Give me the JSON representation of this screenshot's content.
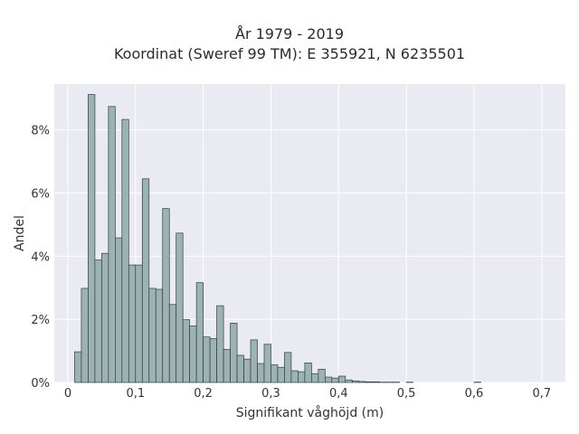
{
  "chart_data": {
    "type": "bar",
    "title_lines": [
      "År 1979 - 2019",
      "Koordinat (Sweref 99 TM): E 355921, N 6235501"
    ],
    "xlabel": "Signifikant våghöjd (m)",
    "ylabel": "Andel",
    "xlim": [
      -0.02,
      0.735
    ],
    "ylim": [
      0,
      9.45
    ],
    "xticks": [
      0,
      0.1,
      0.2,
      0.3,
      0.4,
      0.5,
      0.6,
      0.7
    ],
    "xtick_labels": [
      "0",
      "0,1",
      "0,2",
      "0,3",
      "0,4",
      "0,5",
      "0,6",
      "0,7"
    ],
    "yticks": [
      0,
      2,
      4,
      6,
      8
    ],
    "ytick_labels": [
      "0%",
      "2%",
      "4%",
      "6%",
      "8%"
    ],
    "bin_start": 0.01,
    "bin_width": 0.01,
    "values": [
      0.97,
      2.98,
      9.12,
      3.88,
      4.09,
      8.74,
      4.58,
      8.33,
      3.72,
      3.72,
      6.45,
      2.98,
      2.95,
      5.51,
      2.47,
      4.73,
      1.99,
      1.79,
      3.16,
      1.44,
      1.39,
      2.43,
      1.05,
      1.88,
      0.86,
      0.74,
      1.35,
      0.6,
      1.21,
      0.56,
      0.48,
      0.95,
      0.37,
      0.34,
      0.62,
      0.28,
      0.42,
      0.17,
      0.14,
      0.2,
      0.08,
      0.05,
      0.03,
      0.02,
      0.02,
      0.01,
      0.01,
      0.01,
      0.0,
      0.01,
      0.0,
      0.0,
      0.0,
      0.0,
      0.0,
      0.0,
      0.0,
      0.0,
      0.0,
      0.01
    ],
    "grid": true,
    "colors": {
      "bar_fill": "#9db3b3",
      "bar_edge": "#2f3f3f",
      "plot_bg": "#eaeaf2",
      "grid": "#ffffff"
    }
  }
}
